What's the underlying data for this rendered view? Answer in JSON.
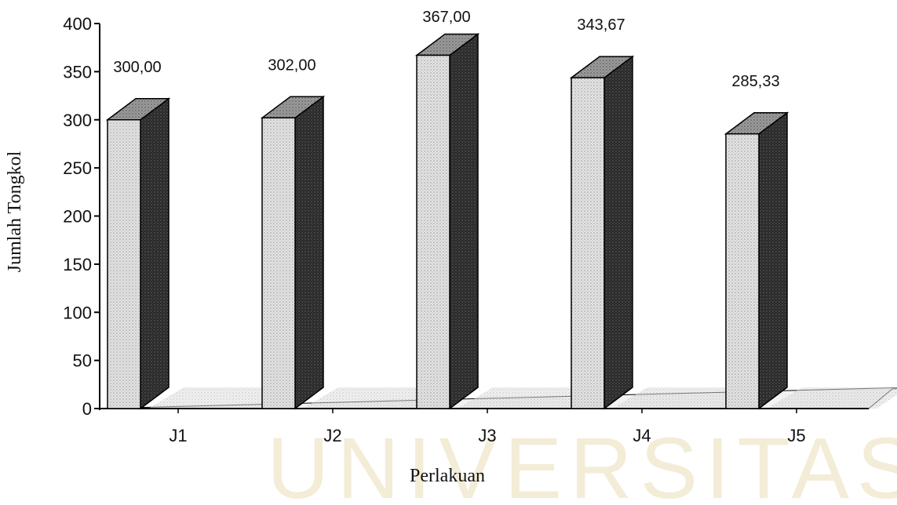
{
  "chart_data": {
    "type": "bar",
    "title": "",
    "xlabel": "Perlakuan",
    "ylabel": "Jumlah Tongkol",
    "categories": [
      "J1",
      "J2",
      "J3",
      "J4",
      "J5"
    ],
    "values": [
      300.0,
      302.0,
      367.0,
      343.67,
      285.33
    ],
    "data_labels": [
      "300,00",
      "302,00",
      "367,00",
      "343,67",
      "285,33"
    ],
    "ylim": [
      0,
      400
    ],
    "yticks": [
      0,
      50,
      100,
      150,
      200,
      250,
      300,
      350,
      400
    ],
    "style": "3d-bar",
    "grid": false,
    "legend": "none"
  },
  "watermark": {
    "text": "UNIVERSITAS"
  },
  "colors": {
    "bar_front": "#d9d9d9",
    "bar_side": "#2b2b2b",
    "bar_top": "#8c8c8c",
    "floor": "#ececec",
    "axis": "#000000",
    "watermark": "#f3ecd7"
  }
}
